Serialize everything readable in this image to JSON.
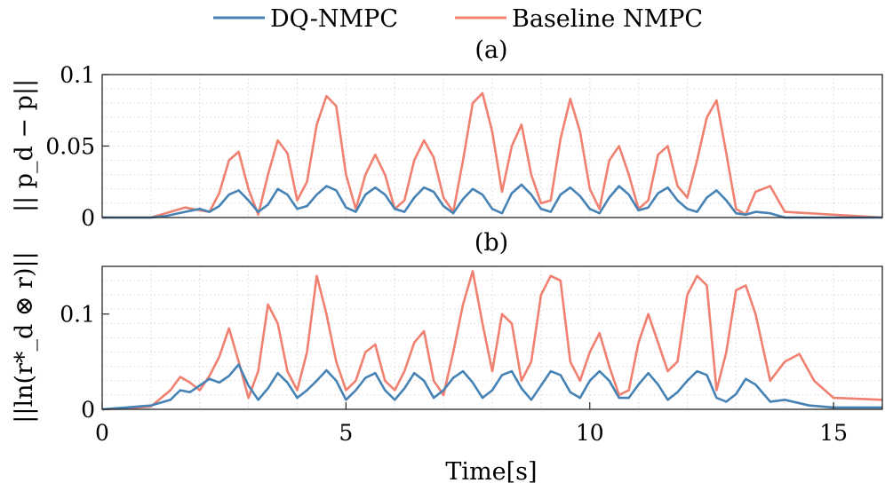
{
  "chart_data": [
    {
      "type": "line",
      "subtitle": "(a)",
      "xlabel": "",
      "ylabel": "|| p_d − p||",
      "xlim": [
        0,
        16
      ],
      "ylim": [
        0,
        0.1
      ],
      "xticks": [
        0,
        5,
        10,
        15
      ],
      "yticks": [
        0,
        0.05,
        0.1
      ],
      "ytick_labels": [
        "0",
        "0.05",
        "0.1"
      ],
      "grid": true,
      "legend_position": "top-center",
      "series": [
        {
          "name": "DQ-NMPC",
          "color": "#4682b4",
          "x": [
            0,
            1,
            1.3,
            1.7,
            2.0,
            2.2,
            2.4,
            2.6,
            2.8,
            3.0,
            3.2,
            3.4,
            3.6,
            3.8,
            4.0,
            4.2,
            4.4,
            4.6,
            4.8,
            5.0,
            5.2,
            5.4,
            5.6,
            5.8,
            6.0,
            6.2,
            6.4,
            6.6,
            6.8,
            7.0,
            7.2,
            7.4,
            7.6,
            7.8,
            8.0,
            8.2,
            8.4,
            8.6,
            8.8,
            9.0,
            9.2,
            9.4,
            9.6,
            9.8,
            10.0,
            10.2,
            10.4,
            10.6,
            10.8,
            11.0,
            11.2,
            11.4,
            11.6,
            11.8,
            12.0,
            12.2,
            12.4,
            12.6,
            12.8,
            13.0,
            13.2,
            13.4,
            13.7,
            14.0,
            16
          ],
          "y": [
            0,
            0,
            0.001,
            0.004,
            0.006,
            0.004,
            0.008,
            0.016,
            0.019,
            0.012,
            0.004,
            0.009,
            0.02,
            0.016,
            0.006,
            0.008,
            0.016,
            0.022,
            0.019,
            0.007,
            0.004,
            0.016,
            0.021,
            0.016,
            0.006,
            0.004,
            0.014,
            0.021,
            0.018,
            0.008,
            0.003,
            0.013,
            0.02,
            0.016,
            0.006,
            0.003,
            0.017,
            0.023,
            0.016,
            0.006,
            0.004,
            0.016,
            0.021,
            0.015,
            0.006,
            0.003,
            0.014,
            0.022,
            0.016,
            0.005,
            0.007,
            0.017,
            0.021,
            0.012,
            0.006,
            0.004,
            0.014,
            0.019,
            0.012,
            0.003,
            0.002,
            0.004,
            0.003,
            0,
            0
          ]
        },
        {
          "name": "Baseline NMPC",
          "color": "#f08070",
          "x": [
            0,
            1,
            1.3,
            1.7,
            2.0,
            2.2,
            2.4,
            2.6,
            2.8,
            3.0,
            3.2,
            3.4,
            3.6,
            3.8,
            4.0,
            4.2,
            4.4,
            4.6,
            4.8,
            5.0,
            5.2,
            5.4,
            5.6,
            5.8,
            6.0,
            6.2,
            6.4,
            6.6,
            6.8,
            7.0,
            7.2,
            7.4,
            7.6,
            7.8,
            8.0,
            8.2,
            8.4,
            8.6,
            8.8,
            9.0,
            9.2,
            9.4,
            9.6,
            9.8,
            10.0,
            10.2,
            10.4,
            10.6,
            10.8,
            11.0,
            11.2,
            11.4,
            11.6,
            11.8,
            12.0,
            12.2,
            12.4,
            12.6,
            12.8,
            13.0,
            13.2,
            13.4,
            13.7,
            14.0,
            16
          ],
          "y": [
            0,
            0,
            0.003,
            0.007,
            0.005,
            0.004,
            0.017,
            0.04,
            0.046,
            0.02,
            0.002,
            0.03,
            0.054,
            0.045,
            0.012,
            0.025,
            0.065,
            0.085,
            0.078,
            0.03,
            0.006,
            0.03,
            0.044,
            0.03,
            0.006,
            0.012,
            0.04,
            0.054,
            0.042,
            0.014,
            0.004,
            0.04,
            0.08,
            0.087,
            0.06,
            0.018,
            0.05,
            0.065,
            0.03,
            0.01,
            0.012,
            0.055,
            0.083,
            0.06,
            0.02,
            0.006,
            0.04,
            0.05,
            0.03,
            0.006,
            0.012,
            0.044,
            0.05,
            0.022,
            0.014,
            0.04,
            0.07,
            0.082,
            0.045,
            0.006,
            0.002,
            0.018,
            0.022,
            0.004,
            0
          ]
        }
      ]
    },
    {
      "type": "line",
      "subtitle": "(b)",
      "xlabel": "Time[s]",
      "ylabel": "||ln(r*_d ⊗ r)||",
      "xlim": [
        0,
        16
      ],
      "ylim": [
        0,
        0.15
      ],
      "xticks": [
        0,
        5,
        10,
        15
      ],
      "xtick_labels": [
        "0",
        "5",
        "10",
        "15"
      ],
      "yticks": [
        0,
        0.1
      ],
      "ytick_labels": [
        "0",
        "0.1"
      ],
      "grid": true,
      "series": [
        {
          "name": "DQ-NMPC",
          "color": "#4682b4",
          "x": [
            0,
            0.5,
            1.0,
            1.4,
            1.6,
            1.8,
            2.0,
            2.2,
            2.4,
            2.6,
            2.8,
            3.0,
            3.2,
            3.4,
            3.6,
            3.8,
            4.0,
            4.2,
            4.4,
            4.6,
            4.8,
            5.0,
            5.2,
            5.4,
            5.6,
            5.8,
            6.0,
            6.2,
            6.4,
            6.6,
            6.8,
            7.0,
            7.2,
            7.4,
            7.6,
            7.8,
            8.0,
            8.2,
            8.4,
            8.6,
            8.8,
            9.0,
            9.2,
            9.4,
            9.6,
            9.8,
            10.0,
            10.2,
            10.4,
            10.6,
            10.8,
            11.0,
            11.2,
            11.4,
            11.6,
            11.8,
            12.0,
            12.2,
            12.4,
            12.6,
            12.8,
            13.0,
            13.2,
            13.4,
            13.7,
            14.0,
            14.5,
            15.0,
            16
          ],
          "y": [
            0,
            0.002,
            0.004,
            0.01,
            0.02,
            0.018,
            0.025,
            0.032,
            0.028,
            0.035,
            0.047,
            0.025,
            0.01,
            0.022,
            0.038,
            0.028,
            0.012,
            0.02,
            0.03,
            0.041,
            0.03,
            0.01,
            0.02,
            0.033,
            0.038,
            0.02,
            0.01,
            0.022,
            0.038,
            0.03,
            0.012,
            0.02,
            0.033,
            0.04,
            0.028,
            0.012,
            0.02,
            0.036,
            0.04,
            0.022,
            0.01,
            0.025,
            0.04,
            0.036,
            0.018,
            0.012,
            0.03,
            0.04,
            0.03,
            0.012,
            0.012,
            0.026,
            0.038,
            0.026,
            0.01,
            0.018,
            0.03,
            0.04,
            0.036,
            0.012,
            0.008,
            0.016,
            0.032,
            0.026,
            0.008,
            0.01,
            0.004,
            0.002,
            0.002
          ]
        },
        {
          "name": "Baseline NMPC",
          "color": "#f08070",
          "x": [
            0,
            0.5,
            1.0,
            1.4,
            1.6,
            1.8,
            2.0,
            2.2,
            2.4,
            2.6,
            2.8,
            3.0,
            3.2,
            3.4,
            3.6,
            3.8,
            4.0,
            4.2,
            4.4,
            4.6,
            4.8,
            5.0,
            5.2,
            5.4,
            5.6,
            5.8,
            6.0,
            6.2,
            6.4,
            6.6,
            6.8,
            7.0,
            7.2,
            7.4,
            7.6,
            7.8,
            8.0,
            8.2,
            8.4,
            8.6,
            8.8,
            9.0,
            9.2,
            9.4,
            9.6,
            9.8,
            10.0,
            10.2,
            10.4,
            10.6,
            10.8,
            11.0,
            11.2,
            11.4,
            11.6,
            11.8,
            12.0,
            12.2,
            12.4,
            12.6,
            12.8,
            13.0,
            13.2,
            13.4,
            13.7,
            14.0,
            14.3,
            14.6,
            15.0,
            16
          ],
          "y": [
            0,
            0.001,
            0.003,
            0.02,
            0.034,
            0.028,
            0.02,
            0.035,
            0.055,
            0.085,
            0.05,
            0.012,
            0.04,
            0.11,
            0.09,
            0.04,
            0.02,
            0.06,
            0.14,
            0.1,
            0.05,
            0.02,
            0.03,
            0.06,
            0.068,
            0.03,
            0.02,
            0.04,
            0.07,
            0.082,
            0.03,
            0.015,
            0.06,
            0.11,
            0.145,
            0.09,
            0.04,
            0.1,
            0.09,
            0.03,
            0.05,
            0.12,
            0.14,
            0.135,
            0.05,
            0.03,
            0.06,
            0.08,
            0.045,
            0.015,
            0.02,
            0.07,
            0.1,
            0.07,
            0.04,
            0.05,
            0.12,
            0.14,
            0.13,
            0.02,
            0.06,
            0.125,
            0.13,
            0.1,
            0.03,
            0.05,
            0.058,
            0.03,
            0.012,
            0.01
          ]
        }
      ]
    }
  ]
}
